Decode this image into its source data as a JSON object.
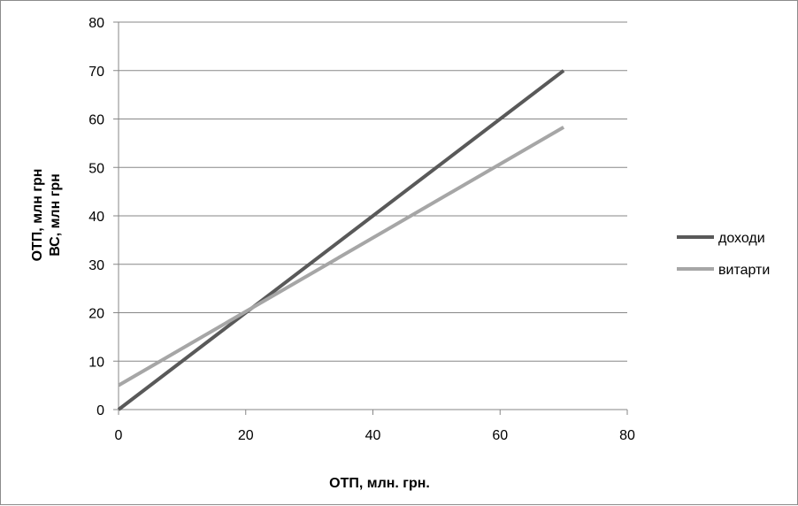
{
  "chart_data": {
    "type": "line",
    "xlabel": "ОТП, млн. грн.",
    "ylabel_lines": [
      "ОТП, млн грн",
      "ВС, млн грн"
    ],
    "xlim": [
      0,
      80
    ],
    "ylim": [
      0,
      80
    ],
    "x_ticks": [
      0,
      20,
      40,
      60,
      80
    ],
    "y_ticks": [
      0,
      10,
      20,
      30,
      40,
      50,
      60,
      70,
      80
    ],
    "grid": "horizontal",
    "legend_position": "right",
    "series": [
      {
        "name": "доходи",
        "color": "#595959",
        "x": [
          0,
          70
        ],
        "y": [
          0,
          70
        ]
      },
      {
        "name": "витарти",
        "color": "#a6a6a6",
        "x": [
          0,
          70
        ],
        "y": [
          5,
          58.3
        ]
      }
    ]
  }
}
